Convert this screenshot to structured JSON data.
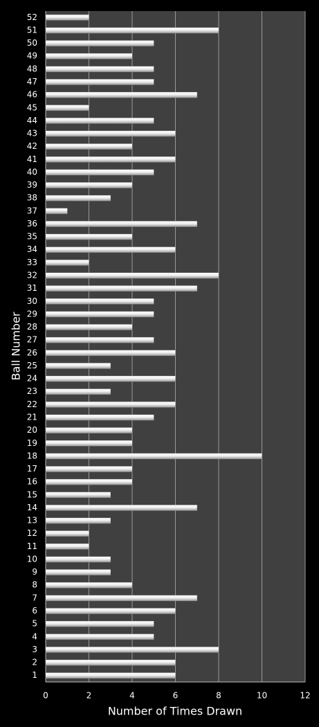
{
  "chart_data": {
    "type": "barh",
    "xlabel": "Number of Times Drawn",
    "ylabel": "Ball Number",
    "categories": [
      "1",
      "2",
      "3",
      "4",
      "5",
      "6",
      "7",
      "8",
      "9",
      "10",
      "11",
      "12",
      "13",
      "14",
      "15",
      "16",
      "17",
      "18",
      "19",
      "20",
      "21",
      "22",
      "23",
      "24",
      "25",
      "26",
      "27",
      "28",
      "29",
      "30",
      "31",
      "32",
      "33",
      "34",
      "35",
      "36",
      "37",
      "38",
      "39",
      "40",
      "41",
      "42",
      "43",
      "44",
      "45",
      "46",
      "47",
      "48",
      "49",
      "50",
      "51",
      "52"
    ],
    "values": [
      6,
      6,
      8,
      5,
      5,
      6,
      7,
      4,
      3,
      3,
      2,
      2,
      3,
      7,
      3,
      4,
      4,
      10,
      4,
      4,
      5,
      6,
      3,
      6,
      3,
      6,
      5,
      4,
      5,
      5,
      7,
      8,
      2,
      6,
      4,
      7,
      1,
      3,
      4,
      5,
      6,
      4,
      6,
      5,
      2,
      7,
      5,
      5,
      4,
      5,
      8,
      2
    ],
    "color": "#e6e6e6",
    "xlim": [
      0,
      12
    ],
    "xticks": [
      0,
      2,
      4,
      6,
      8,
      10,
      12
    ],
    "grid": true
  }
}
